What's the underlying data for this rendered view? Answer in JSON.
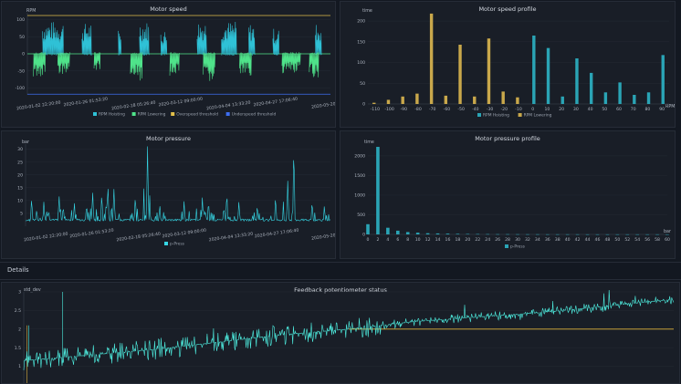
{
  "colors": {
    "hoisting": "#2fc1d6",
    "lowering": "#4fe38a",
    "overspeed": "#e2c04a",
    "underspeed": "#3d6df0",
    "profile_hoist": "#2aa4b5",
    "profile_lower": "#c9a84b",
    "pressure": "#36d6e4",
    "feedback": "#4ff0e2",
    "threshold": "#e0b33c"
  },
  "section": {
    "details_label": "Details"
  },
  "panels": {
    "motor_speed": {
      "title": "Motor speed",
      "unit": "RPM",
      "legend": [
        "RPM Hoisting",
        "RPM Lowering",
        "Overspeed threshold",
        "Underspeed threshold"
      ]
    },
    "speed_profile": {
      "title": "Motor speed profile",
      "unit_y": "time",
      "unit_x": "RPM",
      "legend": [
        "RPM Hoisting",
        "RPM Lowering"
      ]
    },
    "motor_pressure": {
      "title": "Motor pressure",
      "unit": "bar",
      "legend": [
        "p-Press"
      ]
    },
    "pressure_profile": {
      "title": "Motor pressure profile",
      "unit_y": "time",
      "unit_x": "bar",
      "legend": [
        "p-Press"
      ]
    },
    "feedback": {
      "title": "Feedback potentiometer status",
      "unit": "std_dev"
    }
  },
  "chart_data": [
    {
      "type": "line",
      "title": "Motor speed",
      "ylabel": "RPM",
      "ylim": [
        -120,
        120
      ],
      "yticks": [
        -100,
        -50,
        0,
        50,
        100
      ],
      "xticks": [
        "2020-01-02 22:20:00",
        "2020-01-26 01:53:20",
        "2020-02-18 05:26:40",
        "2020-03-12 09:00:00",
        "2020-04-04 13:33:20",
        "2020-04-27 17:06:40",
        "2020-05-20"
      ],
      "thresholds": {
        "overspeed": 112,
        "underspeed": -118
      },
      "series": [
        {
          "name": "RPM Hoisting",
          "bursts": [
            [
              0.05,
              0.12,
              95
            ],
            [
              0.18,
              0.21,
              90
            ],
            [
              0.3,
              0.31,
              70
            ],
            [
              0.37,
              0.4,
              95
            ],
            [
              0.44,
              0.46,
              70
            ],
            [
              0.56,
              0.59,
              98
            ],
            [
              0.64,
              0.69,
              95
            ],
            [
              0.73,
              0.75,
              90
            ],
            [
              0.81,
              0.83,
              75
            ],
            [
              0.95,
              0.97,
              90
            ]
          ]
        },
        {
          "name": "RPM Lowering",
          "bursts": [
            [
              0.02,
              0.06,
              -70
            ],
            [
              0.1,
              0.14,
              -60
            ],
            [
              0.22,
              0.24,
              -50
            ],
            [
              0.34,
              0.38,
              -80
            ],
            [
              0.47,
              0.5,
              -70
            ],
            [
              0.58,
              0.62,
              -85
            ],
            [
              0.7,
              0.74,
              -65
            ],
            [
              0.84,
              0.9,
              -60
            ],
            [
              0.93,
              0.96,
              -70
            ]
          ]
        }
      ]
    },
    {
      "type": "bar",
      "title": "Motor speed profile",
      "ylabel": "time",
      "xlabel": "RPM",
      "ylim": [
        0,
        220
      ],
      "yticks": [
        0,
        50,
        100,
        150,
        200
      ],
      "categories": [
        -110,
        -100,
        -90,
        -80,
        -70,
        -60,
        -50,
        -40,
        -30,
        -20,
        -10,
        0,
        10,
        20,
        30,
        40,
        50,
        60,
        70,
        80,
        90
      ],
      "series": [
        {
          "name": "RPM Hoisting",
          "values": [
            0,
            0,
            0,
            0,
            0,
            0,
            0,
            0,
            0,
            0,
            0,
            165,
            135,
            18,
            110,
            75,
            28,
            52,
            22,
            28,
            118
          ]
        },
        {
          "name": "RPM Lowering",
          "values": [
            3,
            10,
            18,
            25,
            218,
            20,
            143,
            18,
            158,
            30,
            16,
            0,
            0,
            0,
            0,
            0,
            0,
            0,
            0,
            0,
            0
          ]
        }
      ]
    },
    {
      "type": "line",
      "title": "Motor pressure",
      "ylabel": "bar",
      "ylim": [
        0,
        32
      ],
      "yticks": [
        5,
        10,
        15,
        20,
        25,
        30
      ],
      "xticks": [
        "2020-01-02 22:20:00",
        "2020-01-26 01:53:20",
        "2020-02-18 05:26:40",
        "2020-03-12 09:00:00",
        "2020-04-04 13:33:20",
        "2020-04-27 17:06:40",
        "2020-05-20"
      ],
      "series": [
        {
          "name": "p-Press",
          "spikes": [
            [
              0.02,
              11
            ],
            [
              0.06,
              9
            ],
            [
              0.11,
              12
            ],
            [
              0.16,
              10
            ],
            [
              0.2,
              9
            ],
            [
              0.22,
              14
            ],
            [
              0.25,
              13
            ],
            [
              0.27,
              17
            ],
            [
              0.29,
              15
            ],
            [
              0.36,
              12
            ],
            [
              0.4,
              30
            ],
            [
              0.44,
              9
            ],
            [
              0.52,
              10
            ],
            [
              0.58,
              11
            ],
            [
              0.6,
              9
            ],
            [
              0.66,
              13
            ],
            [
              0.7,
              10
            ],
            [
              0.76,
              8
            ],
            [
              0.82,
              11
            ],
            [
              0.86,
              17
            ],
            [
              0.88,
              32
            ],
            [
              0.94,
              10
            ],
            [
              0.98,
              8
            ]
          ]
        }
      ]
    },
    {
      "type": "bar",
      "title": "Motor pressure profile",
      "ylabel": "time",
      "xlabel": "bar",
      "ylim": [
        0,
        2300
      ],
      "yticks": [
        0,
        500,
        1000,
        1500,
        2000
      ],
      "categories": [
        0,
        2,
        4,
        6,
        8,
        10,
        12,
        14,
        16,
        18,
        20,
        22,
        24,
        26,
        28,
        30,
        32,
        34,
        36,
        38,
        40,
        42,
        44,
        46,
        48,
        50,
        52,
        54,
        56,
        58,
        60
      ],
      "series": [
        {
          "name": "p-Press",
          "values": [
            260,
            2230,
            170,
            95,
            60,
            45,
            30,
            25,
            20,
            15,
            12,
            10,
            8,
            6,
            6,
            5,
            4,
            4,
            3,
            3,
            3,
            3,
            2,
            2,
            2,
            2,
            2,
            2,
            2,
            2,
            2
          ]
        }
      ]
    },
    {
      "type": "line",
      "title": "Feedback potentiometer status",
      "ylabel": "std_dev",
      "ylim": [
        0.5,
        3
      ],
      "yticks": [
        1,
        1.5,
        2,
        2.5,
        3
      ],
      "threshold": 2,
      "trend": [
        [
          0.0,
          1.15
        ],
        [
          0.2,
          1.45
        ],
        [
          0.4,
          1.85
        ],
        [
          0.5,
          2.0
        ],
        [
          0.6,
          2.2
        ],
        [
          0.8,
          2.45
        ],
        [
          1.0,
          2.8
        ]
      ]
    }
  ]
}
